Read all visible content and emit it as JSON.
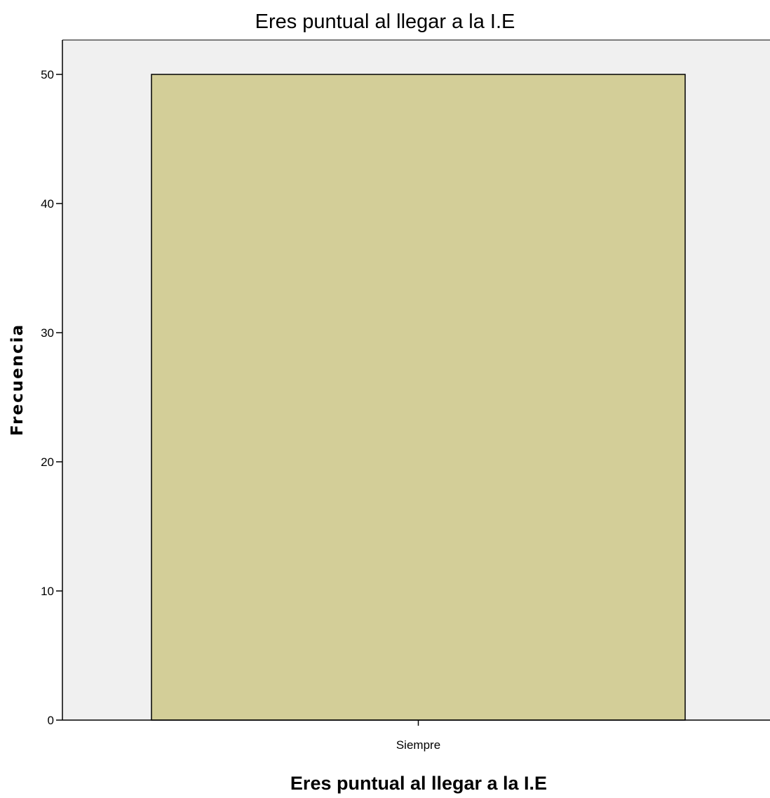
{
  "chart_data": {
    "type": "bar",
    "title": "Eres puntual al llegar a la I.E",
    "xlabel": "Eres puntual al llegar a la I.E",
    "ylabel": "Frecuencia",
    "categories": [
      "Siempre"
    ],
    "values": [
      50
    ],
    "ylim": [
      0,
      52.5
    ],
    "yticks": [
      0,
      10,
      20,
      30,
      40,
      50
    ],
    "grid": false,
    "legend": "none",
    "colors": {
      "bar_fill": "#d3ce98",
      "bar_stroke": "#000000",
      "plot_background": "#f0f0f0"
    }
  }
}
